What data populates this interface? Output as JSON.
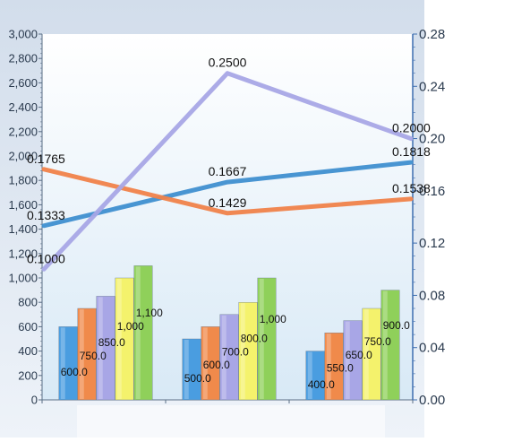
{
  "chart_data": {
    "type": "bar",
    "categories": [
      "",
      "",
      ""
    ],
    "y_left": {
      "range": [
        0,
        3000
      ],
      "ticks": [
        "0",
        "200",
        "400",
        "600",
        "800",
        "1,000",
        "1,200",
        "1,400",
        "1,600",
        "1,800",
        "2,000",
        "2,200",
        "2,400",
        "2,600",
        "2,800",
        "3,000"
      ]
    },
    "y_right": {
      "range": [
        0,
        0.28
      ],
      "ticks": [
        "0.00",
        "0.04",
        "0.08",
        "0.12",
        "0.16",
        "0.20",
        "0.24",
        "0.28"
      ]
    },
    "bar_series": [
      {
        "values": [
          600,
          500,
          400
        ],
        "labels": [
          "600.0",
          "500.0",
          "400.0"
        ],
        "color": "#4a9de0"
      },
      {
        "values": [
          750,
          600,
          550
        ],
        "labels": [
          "750.0",
          "600.0",
          "550.0"
        ],
        "color": "#f08a4b"
      },
      {
        "values": [
          850,
          700,
          650
        ],
        "labels": [
          "850.0",
          "700.0",
          "650.0"
        ],
        "color": "#a8a6e6"
      },
      {
        "values": [
          1000,
          800,
          750
        ],
        "labels": [
          "1,000",
          "800.0",
          "750.0"
        ],
        "color": "#f4f26c"
      },
      {
        "values": [
          1100,
          1000,
          900
        ],
        "labels": [
          "1,100",
          "1,000",
          "900.0"
        ],
        "color": "#8fd05a"
      }
    ],
    "line_series": [
      {
        "values": [
          0.1333,
          0.1667,
          0.1818
        ],
        "labels": [
          "0.1333",
          "0.1667",
          "0.1818"
        ],
        "color": "#3f8fd0"
      },
      {
        "values": [
          0.1765,
          0.1429,
          0.1538
        ],
        "labels": [
          "0.1765",
          "0.1429",
          "0.1538"
        ],
        "color": "#f0824a"
      },
      {
        "values": [
          0.1,
          0.25,
          0.2
        ],
        "labels": [
          "0.1000",
          "0.2500",
          "0.2000"
        ],
        "color": "#a8a6e6"
      }
    ],
    "grid": false,
    "legend": "none"
  }
}
